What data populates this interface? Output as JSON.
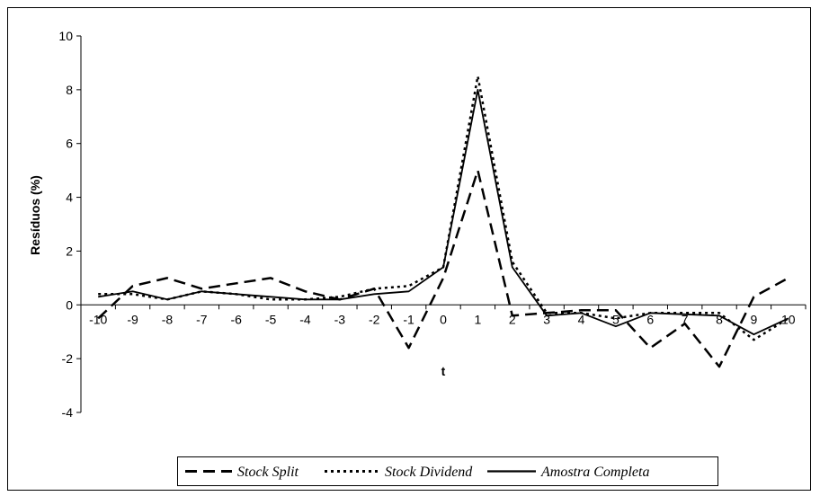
{
  "chart_data": {
    "type": "line",
    "title": "",
    "xlabel": "t",
    "ylabel": "Resíduos (%)",
    "x": [
      -10,
      -9,
      -8,
      -7,
      -6,
      -5,
      -4,
      -3,
      -2,
      -1,
      0,
      1,
      2,
      3,
      4,
      5,
      6,
      7,
      8,
      9,
      10
    ],
    "x_tick_labels": [
      "-10",
      "-9",
      "-8",
      "-7",
      "-6",
      "-5",
      "-4",
      "-3",
      "-2",
      "-1",
      "0",
      "1",
      "2",
      "3",
      "4",
      "5",
      "6",
      "7",
      "8",
      "9",
      "10"
    ],
    "ylim": [
      -4,
      10
    ],
    "y_ticks": [
      -4,
      -2,
      0,
      2,
      4,
      6,
      8,
      10
    ],
    "grid": false,
    "legend_position": "bottom",
    "series": [
      {
        "name": "Stock Split",
        "style": "long-dash",
        "color": "#000000",
        "values": [
          -0.5,
          0.7,
          1.0,
          0.6,
          0.8,
          1.0,
          0.5,
          0.2,
          0.6,
          -1.6,
          1.0,
          5.0,
          -0.4,
          -0.3,
          -0.2,
          -0.2,
          -1.6,
          -0.7,
          -2.3,
          0.3,
          1.0
        ]
      },
      {
        "name": "Stock Dividend",
        "style": "short-dash",
        "color": "#000000",
        "values": [
          0.4,
          0.4,
          0.2,
          0.5,
          0.4,
          0.2,
          0.2,
          0.3,
          0.6,
          0.7,
          1.4,
          8.5,
          1.6,
          -0.3,
          -0.3,
          -0.5,
          -0.3,
          -0.3,
          -0.3,
          -1.3,
          -0.5
        ]
      },
      {
        "name": "Amostra Completa",
        "style": "solid",
        "color": "#000000",
        "values": [
          0.3,
          0.5,
          0.2,
          0.5,
          0.4,
          0.3,
          0.2,
          0.2,
          0.4,
          0.5,
          1.4,
          8.0,
          1.4,
          -0.4,
          -0.3,
          -0.8,
          -0.3,
          -0.35,
          -0.4,
          -1.1,
          -0.5
        ]
      }
    ]
  }
}
